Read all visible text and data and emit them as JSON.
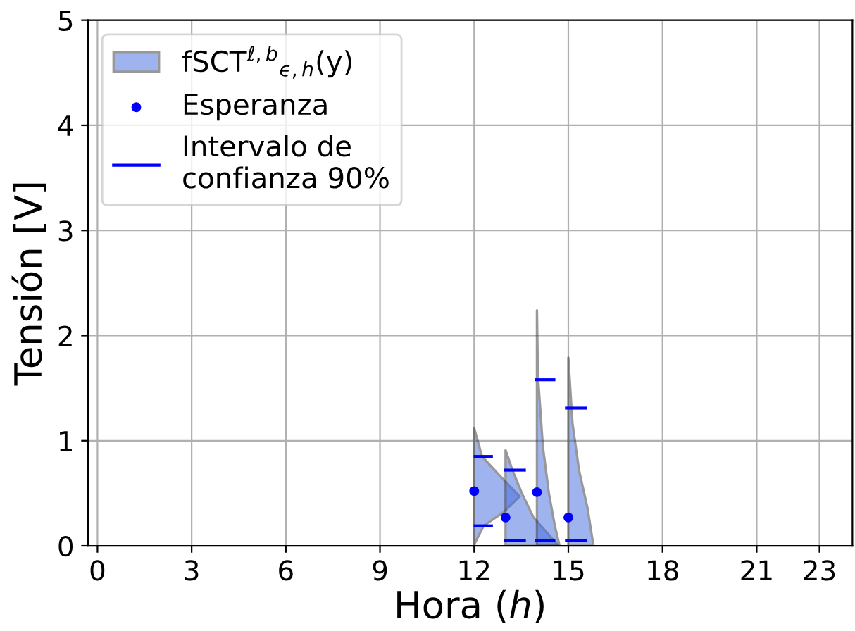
{
  "chart_data": {
    "type": "area",
    "xlabel": "Hora (ℎ)",
    "ylabel": "Tensión [V]",
    "xlim": [
      -0.3,
      24.05
    ],
    "xticks": [
      0,
      3,
      6,
      9,
      12,
      15,
      18,
      21,
      23
    ],
    "ylim": [
      0,
      5
    ],
    "yticks": [
      0,
      1,
      2,
      3,
      4,
      5
    ],
    "grid": true,
    "legend": "top left",
    "series": [
      {
        "name": "fSCT$^{ℓ,b}$$_{ϵ,h}$(y)",
        "type": "area",
        "color": "#4169e1",
        "x": [
          12,
          12.03,
          12.3,
          12.93,
          13.45,
          12.93,
          12.25,
          12
        ],
        "values": [
          0,
          0.03,
          0.19,
          0.32,
          0.47,
          0.63,
          0.85,
          1.12
        ]
      },
      {
        "type": "area",
        "color": "#4169e1",
        "x": [
          13,
          14.69,
          14.42,
          13.89,
          13.52,
          13.22,
          13
        ],
        "values": [
          0,
          0,
          0.09,
          0.27,
          0.5,
          0.72,
          0.91
        ]
      },
      {
        "type": "area",
        "color": "#4169e1",
        "x": [
          14,
          14.72,
          14.57,
          14.38,
          14.19,
          14.03,
          14
        ],
        "values": [
          0,
          0,
          0.19,
          0.5,
          0.94,
          1.62,
          2.24
        ]
      },
      {
        "type": "area",
        "color": "#4169e1",
        "x": [
          15,
          15.8,
          15.61,
          15.34,
          15.13,
          15
        ],
        "values": [
          0,
          0,
          0.36,
          0.72,
          1.17,
          1.79
        ]
      },
      {
        "name": "Esperanza",
        "type": "scatter",
        "marker": "circle",
        "color": "#0000ff",
        "x": [
          12,
          13,
          14,
          15
        ],
        "values": [
          0.52,
          0.27,
          0.51,
          0.27
        ]
      },
      {
        "name": "Intervalo de\nconfianza 90%",
        "type": "line",
        "line_style": "solid",
        "color": "#0000ff",
        "x": [
          12.03,
          12.55
        ],
        "values": [
          0.85,
          0.85
        ]
      },
      {
        "type": "line",
        "line_style": "solid",
        "color": "#0000ff",
        "x": [
          12.03,
          12.55
        ],
        "values": [
          0.19,
          0.19
        ]
      },
      {
        "type": "line",
        "line_style": "solid",
        "color": "#0000ff",
        "x": [
          13.0,
          13.6
        ],
        "values": [
          0.72,
          0.72
        ]
      },
      {
        "type": "line",
        "line_style": "solid",
        "color": "#0000ff",
        "x": [
          13.0,
          13.6
        ],
        "values": [
          0.05,
          0.05
        ]
      },
      {
        "type": "line",
        "line_style": "solid",
        "color": "#0000ff",
        "x": [
          13.97,
          14.54
        ],
        "values": [
          1.58,
          1.58
        ]
      },
      {
        "type": "line",
        "line_style": "solid",
        "color": "#0000ff",
        "x": [
          13.97,
          14.54
        ],
        "values": [
          0.05,
          0.05
        ]
      },
      {
        "type": "line",
        "line_style": "solid",
        "color": "#0000ff",
        "x": [
          14.94,
          15.54
        ],
        "values": [
          1.31,
          1.31
        ]
      },
      {
        "type": "line",
        "line_style": "solid",
        "color": "#0000ff",
        "x": [
          14.94,
          15.54
        ],
        "values": [
          0.05,
          0.05
        ]
      }
    ]
  }
}
